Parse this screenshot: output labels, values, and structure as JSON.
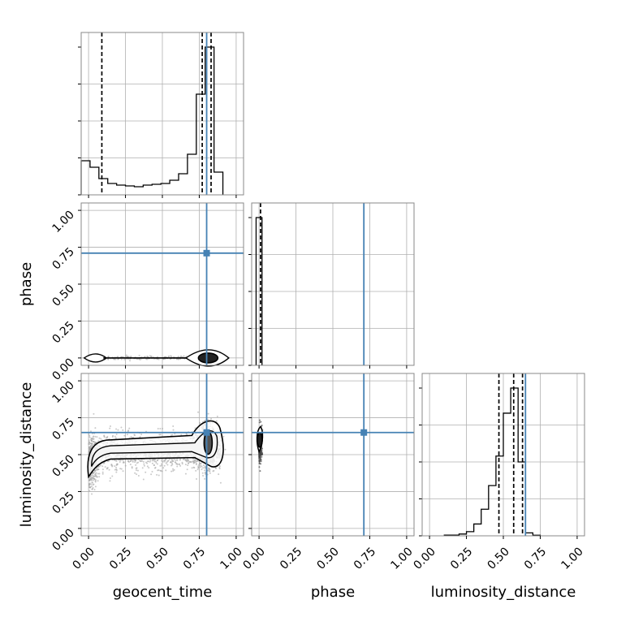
{
  "chart_data": {
    "type": "corner",
    "parameters": [
      "geocent_time",
      "phase",
      "luminosity_distance"
    ],
    "tick_values": [
      0.0,
      0.25,
      0.5,
      0.75,
      1.0
    ],
    "tick_labels": [
      "0.00",
      "0.25",
      "0.50",
      "0.75",
      "1.00"
    ],
    "axis_range": [
      -0.05,
      1.05
    ],
    "grid": true,
    "colors": {
      "truth": "#4682b4",
      "hist": "#000000",
      "samples": "#9e9e9e"
    },
    "truths": {
      "geocent_time": 0.8,
      "phase": 0.71,
      "luminosity_distance": 0.65
    },
    "marginals": {
      "geocent_time": {
        "bin_edges": [
          -0.05,
          0.01,
          0.07,
          0.13,
          0.19,
          0.25,
          0.31,
          0.37,
          0.43,
          0.49,
          0.55,
          0.61,
          0.67,
          0.73,
          0.79,
          0.85,
          0.91
        ],
        "counts": [
          0.21,
          0.17,
          0.1,
          0.07,
          0.06,
          0.055,
          0.05,
          0.06,
          0.065,
          0.07,
          0.09,
          0.13,
          0.25,
          0.62,
          0.91,
          0.14
        ],
        "quantiles": [
          0.09,
          0.77,
          0.83
        ]
      },
      "phase": {
        "bin_edges": [
          -0.02,
          0.0,
          0.02
        ],
        "counts": [
          1.0,
          1.0
        ],
        "quantiles": [
          0.01
        ]
      },
      "luminosity_distance": {
        "bin_edges": [
          0.1,
          0.15,
          0.2,
          0.25,
          0.3,
          0.35,
          0.4,
          0.45,
          0.5,
          0.55,
          0.6,
          0.65,
          0.7,
          0.75
        ],
        "counts": [
          0.005,
          0.005,
          0.012,
          0.028,
          0.08,
          0.18,
          0.34,
          0.54,
          0.83,
          1.0,
          0.5,
          0.02,
          0.004
        ],
        "quantiles": [
          0.47,
          0.57,
          0.63
        ]
      }
    },
    "joint": [
      {
        "x": "geocent_time",
        "y": "phase",
        "sample_cloud": {
          "x_range": [
            0.0,
            0.9
          ],
          "y_range": [
            -0.02,
            0.02
          ]
        }
      },
      {
        "x": "geocent_time",
        "y": "luminosity_distance",
        "sample_cloud": {
          "x_range": [
            0.0,
            0.92
          ],
          "y_range": [
            0.15,
            0.73
          ]
        }
      },
      {
        "x": "phase",
        "y": "luminosity_distance",
        "sample_cloud": {
          "x_range": [
            -0.01,
            0.02
          ],
          "y_range": [
            0.4,
            0.7
          ]
        }
      }
    ]
  }
}
